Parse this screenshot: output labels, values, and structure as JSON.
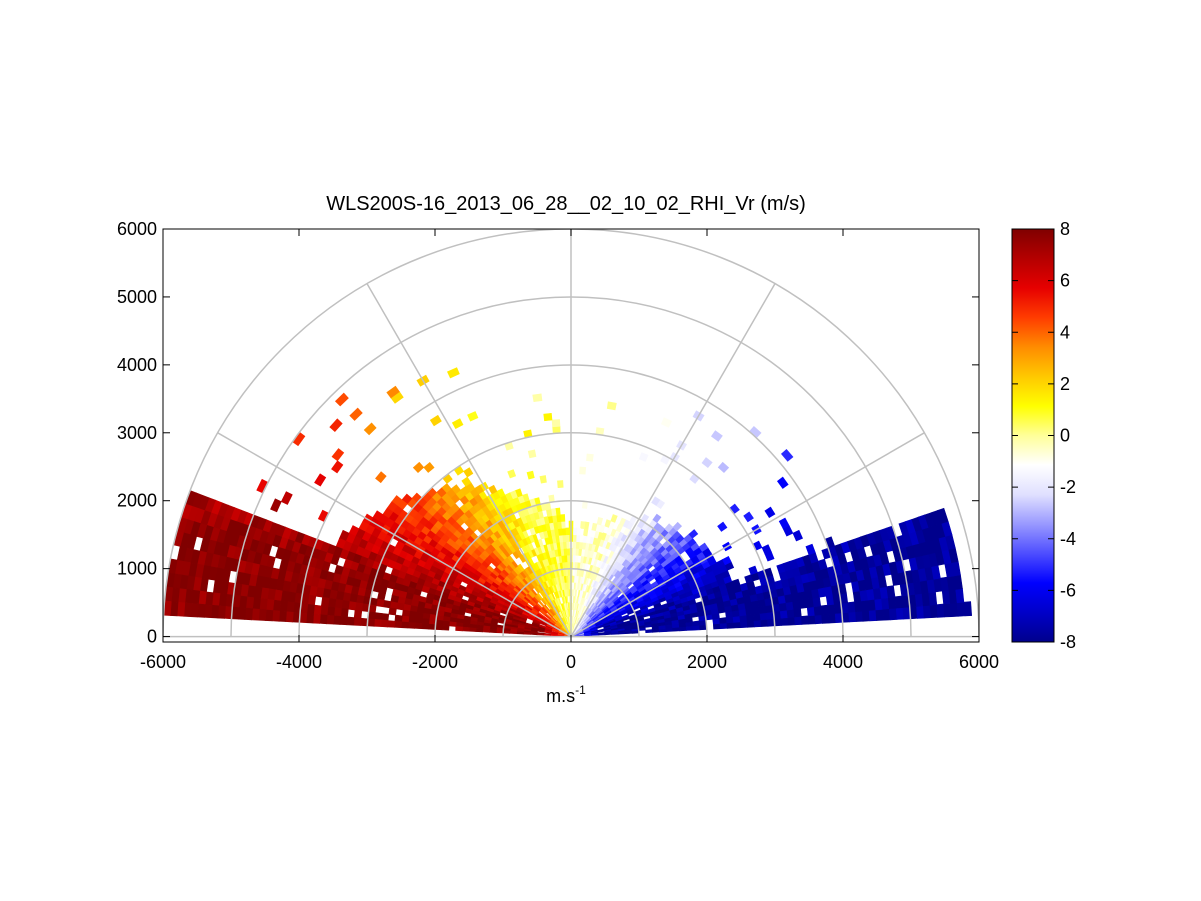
{
  "chart_data": {
    "type": "heatmap",
    "subtype": "polar-rhi-sector",
    "title": "WLS200S-16_2013_06_28__02_10_02_RHI_Vr (m/s)",
    "xlabel_base": "m.s",
    "xlabel_sup": "-1",
    "ylabel": "",
    "xlim": [
      -6000,
      6000
    ],
    "ylim": [
      -80,
      6000
    ],
    "x_ticks": [
      "-6000",
      "-4000",
      "-2000",
      "0",
      "2000",
      "4000",
      "6000"
    ],
    "y_ticks": [
      "0",
      "1000",
      "2000",
      "3000",
      "4000",
      "5000",
      "6000"
    ],
    "x_tick_values": [
      -6000,
      -4000,
      -2000,
      0,
      2000,
      4000,
      6000
    ],
    "y_tick_values": [
      0,
      1000,
      2000,
      3000,
      4000,
      5000,
      6000
    ],
    "polar_grid": {
      "range_rings": [
        1000,
        2000,
        3000,
        4000,
        5000,
        6000
      ],
      "spokes_deg": [
        0,
        30,
        60,
        90,
        120,
        150,
        180
      ]
    },
    "colorbar": {
      "min": -8,
      "max": 8,
      "ticks": [
        "8",
        "6",
        "4",
        "2",
        "0",
        "-2",
        "-4",
        "-6",
        "-8"
      ],
      "tick_values": [
        8,
        6,
        4,
        2,
        0,
        -2,
        -4,
        -6,
        -8
      ],
      "colormap": [
        "#00008c",
        "#0000c8",
        "#0000ff",
        "#4d4dff",
        "#9999ff",
        "#e0e0ff",
        "#ffffff",
        "#ffff99",
        "#ffff00",
        "#ffc800",
        "#ff8c00",
        "#ff3c00",
        "#e60000",
        "#b40000",
        "#800000"
      ]
    },
    "grid": true,
    "scan": {
      "elevation_range_deg": [
        3,
        177
      ],
      "max_range": 6000,
      "description_values": "radial velocity: negative (blue, approaching) on east side, positive (red, receding) on west side, near-zero at higher elevations"
    },
    "velocity_model": [
      {
        "sector": "east, low elevation (3-20 deg)",
        "range": [
          0,
          5900
        ],
        "vr": -7.5
      },
      {
        "sector": "east, 20-50 deg",
        "range": [
          0,
          2500
        ],
        "vr": -4
      },
      {
        "sector": "near vertical (70-110 deg)",
        "range": [
          0,
          1500
        ],
        "vr": 0
      },
      {
        "sector": "west, 130-160 deg",
        "range": [
          0,
          3500
        ],
        "vr": 3
      },
      {
        "sector": "west, low elevation (160-177 deg)",
        "range": [
          0,
          6000
        ],
        "vr": 7.5
      }
    ]
  }
}
